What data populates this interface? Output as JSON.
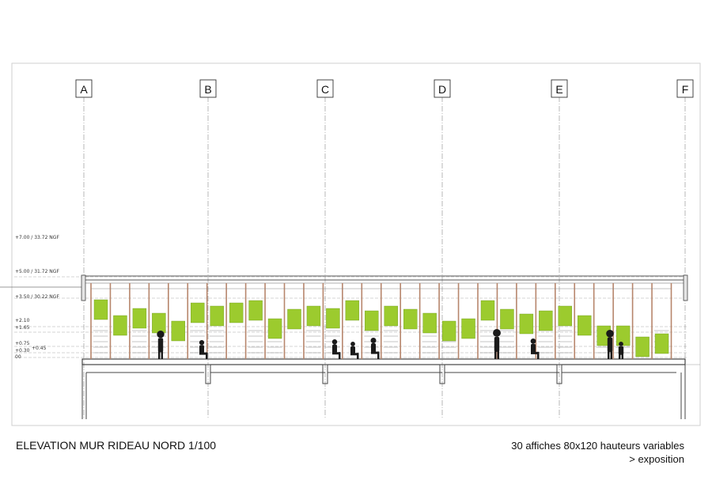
{
  "grid_axes": [
    "A",
    "B",
    "C",
    "D",
    "E",
    "F"
  ],
  "levels": [
    "+7.00 / 33.72 NGF",
    "+5.00 / 31.72 NGF",
    "+3.50 / 30.22 NGF",
    "+2.10",
    "+1.65",
    "+0.75",
    "+0.30",
    "+0.45",
    "00"
  ],
  "title": "ELEVATION MUR RIDEAU NORD 1/100",
  "note_line1": "30 affiches 80x120 hauteurs variables",
  "note_line2": "> exposition",
  "colors": {
    "poster": "#9ccb2e",
    "mullion": "#b7866c",
    "outline": "#444444",
    "gridline": "#9a9a9a"
  },
  "poster_count": 30
}
